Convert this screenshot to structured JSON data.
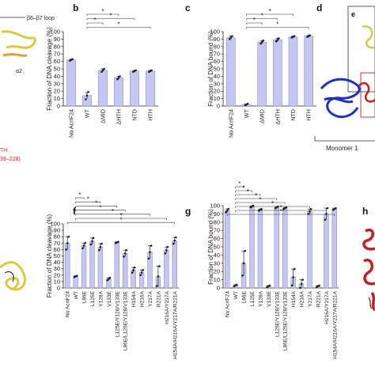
{
  "panels": {
    "a": {
      "loop_label": "β6–β7 loop",
      "helix_label": "α2",
      "hth_label": "TH",
      "hth_range": "39–228)"
    },
    "d": {
      "letter": "d",
      "inset_letter": "e",
      "monomer_label": "Monomer 1"
    },
    "h": {
      "letter": "h"
    }
  },
  "chart_data": [
    {
      "id": "b",
      "letter": "b",
      "type": "bar",
      "ylabel": "Fraction of DNA cleavage (%)",
      "ylim": [
        0,
        100
      ],
      "yticks": [
        0,
        10,
        20,
        30,
        40,
        50,
        60,
        70,
        80,
        90,
        100
      ],
      "categories": [
        "No AcrIF24",
        "WT",
        "ΔMID",
        "ΔHTH",
        "NTD",
        "HTH"
      ],
      "values": [
        62,
        14,
        48,
        38,
        47,
        47
      ],
      "errors": [
        1,
        4,
        2,
        2,
        1,
        1
      ],
      "points": [
        [
          61,
          62,
          63
        ],
        [
          9,
          14,
          19
        ],
        [
          46,
          48,
          50
        ],
        [
          36,
          38,
          40
        ],
        [
          46,
          47,
          48
        ],
        [
          46,
          47,
          48
        ]
      ],
      "significance": [
        {
          "from": 1,
          "to": 3,
          "label": "*"
        },
        {
          "from": 1,
          "to": 4,
          "label": "*"
        },
        {
          "from": 1,
          "to": 2,
          "label": "*"
        },
        {
          "from": 1,
          "to": 5,
          "label": "*"
        }
      ]
    },
    {
      "id": "c",
      "letter": "c",
      "type": "bar",
      "ylabel": "Fraction of DNA bound (%)",
      "ylim": [
        0,
        100
      ],
      "yticks": [
        0,
        10,
        20,
        30,
        40,
        50,
        60,
        70,
        80,
        90,
        100
      ],
      "categories": [
        "No AcrIF24",
        "WT",
        "ΔMID",
        "ΔHTH",
        "NTD",
        "HTH"
      ],
      "values": [
        92,
        2,
        86,
        89,
        93,
        94
      ],
      "errors": [
        2,
        1,
        2,
        2,
        1,
        1
      ],
      "points": [
        [
          90,
          92,
          94
        ],
        [
          1,
          2,
          3
        ],
        [
          84,
          86,
          88
        ],
        [
          87,
          89,
          91
        ],
        [
          92,
          93,
          94
        ],
        [
          93,
          94,
          95
        ]
      ],
      "significance": [
        {
          "from": 1,
          "to": 4,
          "label": "*"
        },
        {
          "from": 1,
          "to": 3,
          "label": "*"
        },
        {
          "from": 1,
          "to": 2,
          "label": "*"
        },
        {
          "from": 1,
          "to": 5,
          "label": "*"
        }
      ]
    },
    {
      "id": "f",
      "letter": "f",
      "type": "bar",
      "ylabel": "Fraction of DNA cleavage (%)",
      "ylim": [
        0,
        100
      ],
      "yticks": [
        0,
        10,
        20,
        30,
        40,
        50,
        60,
        70,
        80,
        90,
        100
      ],
      "categories": [
        "No AcrIF24",
        "WT",
        "L86E",
        "L125E",
        "Y128A",
        "V133E",
        "L125E/Y128/V133E",
        "L86E/L125E/Y128/V133E",
        "H154A",
        "H216A",
        "Y217A",
        "R221A",
        "H216A/Y217A",
        "H154A/H216A/Y217A/R221A"
      ],
      "values": [
        70,
        18,
        66,
        73,
        64,
        14,
        71,
        54,
        28,
        24,
        56,
        18,
        59,
        74
      ],
      "errors": [
        10,
        1,
        4,
        5,
        5,
        2,
        1,
        5,
        4,
        4,
        10,
        16,
        5,
        5
      ],
      "points": [
        [
          60,
          70,
          80
        ],
        [
          17,
          18,
          19
        ],
        [
          62,
          66,
          70
        ],
        [
          68,
          73,
          78
        ],
        [
          59,
          64,
          69
        ],
        [
          12,
          14,
          16
        ],
        [
          70,
          71,
          72
        ],
        [
          49,
          54,
          59
        ],
        [
          24,
          28,
          32
        ],
        [
          20,
          24,
          28
        ],
        [
          46,
          56,
          66
        ],
        [
          3,
          18,
          34
        ],
        [
          54,
          59,
          64
        ],
        [
          69,
          74,
          79
        ]
      ],
      "significance": [
        {
          "from": 1,
          "to": 2,
          "label": "*"
        },
        {
          "from": 1,
          "to": 4,
          "label": "*"
        },
        {
          "from": 1,
          "to": 6,
          "label": "*"
        },
        {
          "from": 1,
          "to": 7,
          "label": "*"
        },
        {
          "from": 1,
          "to": 10,
          "label": "*"
        },
        {
          "from": 1,
          "to": 12,
          "label": "*"
        },
        {
          "from": 0,
          "to": 13,
          "label": "*"
        }
      ]
    },
    {
      "id": "g",
      "letter": "g",
      "type": "bar",
      "ylabel": "Fraction of DNA bound (%)",
      "ylim": [
        0,
        100
      ],
      "yticks": [
        0,
        10,
        20,
        30,
        40,
        50,
        60,
        70,
        80,
        90,
        100
      ],
      "categories": [
        "No AcrIF24",
        "WT",
        "L86E",
        "L125E",
        "Y128A",
        "V133E",
        "L125E/Y128/V133E",
        "L86E/L125E/Y128/V133E",
        "H154A",
        "H216A",
        "Y217A",
        "R221A",
        "H216A/Y217A",
        "H154A/H216A/Y217A/R221A"
      ],
      "values": [
        94,
        3,
        30,
        99,
        95,
        2,
        98,
        97,
        13,
        5,
        93,
        2,
        90,
        96
      ],
      "errors": [
        2,
        1,
        15,
        1,
        1,
        1,
        1,
        1,
        10,
        5,
        3,
        1,
        7,
        1
      ],
      "points": [
        [
          92,
          94,
          96
        ],
        [
          2,
          3,
          4
        ],
        [
          15,
          30,
          45
        ],
        [
          98,
          99,
          100
        ],
        [
          94,
          95,
          96
        ],
        [
          1,
          2,
          3
        ],
        [
          97,
          98,
          99
        ],
        [
          96,
          97,
          98
        ],
        [
          3,
          13,
          23
        ],
        [
          0,
          5,
          10
        ],
        [
          90,
          93,
          96
        ],
        [
          1,
          2,
          3
        ],
        [
          83,
          90,
          97
        ],
        [
          95,
          96,
          97
        ]
      ],
      "significance": [
        {
          "from": 1,
          "to": 2,
          "label": "*"
        },
        {
          "from": 1,
          "to": 3,
          "label": "*"
        },
        {
          "from": 1,
          "to": 4,
          "label": "*"
        },
        {
          "from": 1,
          "to": 6,
          "label": "*"
        },
        {
          "from": 1,
          "to": 7,
          "label": "*"
        },
        {
          "from": 1,
          "to": 10,
          "label": "*"
        },
        {
          "from": 1,
          "to": 12,
          "label": "*"
        },
        {
          "from": 0,
          "to": 13,
          "label": "*"
        }
      ]
    }
  ],
  "colors": {
    "bar_fill": "#c5c6f2",
    "bar_stroke": "#8080c8",
    "dot": "#222222",
    "ribbon_blue": "#1e2ec8",
    "ribbon_red": "#c81e1e",
    "ribbon_yellow": "#d6cc3a"
  }
}
